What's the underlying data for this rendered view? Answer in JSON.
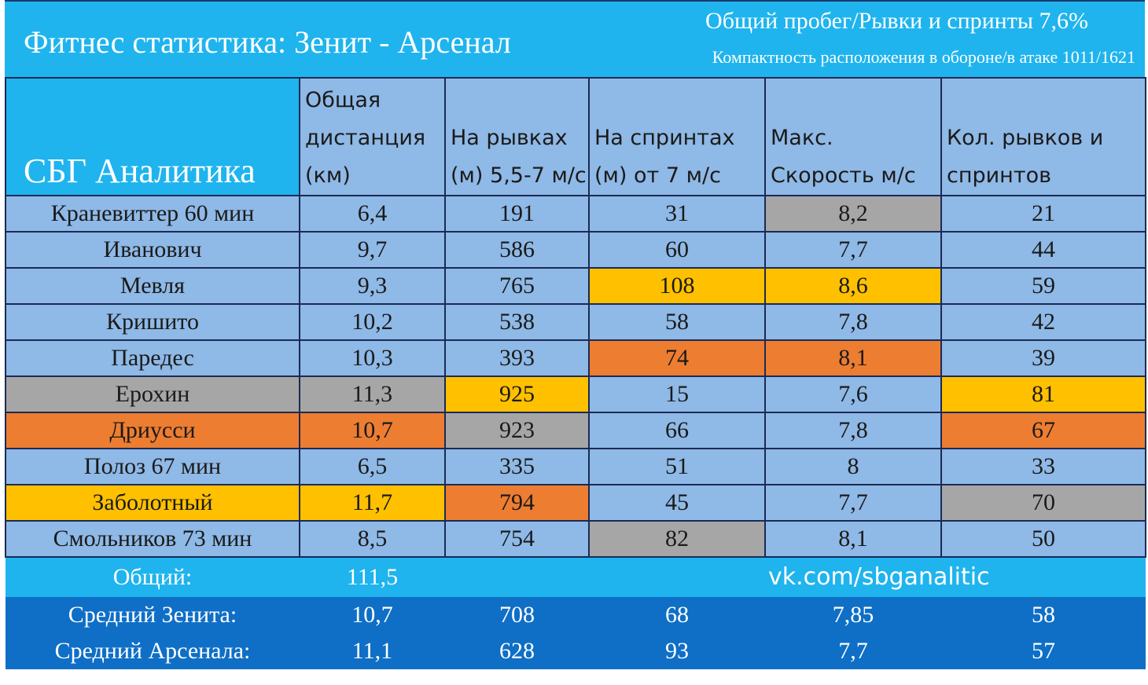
{
  "title": "Фитнес статистика: Зенит - Арсенал",
  "subtitle1": "Общий пробег/Рывки и спринты 7,6%",
  "subtitle2": "Компактность расположения в обороне/в атаке 1011/1621",
  "brand": "СБГ Аналитика",
  "headers": [
    "Общая дистанция (км)",
    "На рывках (м) 5,5-7 м/с",
    "На спринтах (м) от 7 м/с",
    "Макс. Скорость м/с",
    "Кол. рывков и спринтов"
  ],
  "rows": [
    {
      "name": "Краневиттер 60 мин",
      "values": [
        "6,4",
        "191",
        "31",
        "8,2",
        "21"
      ]
    },
    {
      "name": "Иванович",
      "values": [
        "9,7",
        "586",
        "60",
        "7,7",
        "44"
      ]
    },
    {
      "name": "Мевля",
      "values": [
        "9,3",
        "765",
        "108",
        "8,6",
        "59"
      ]
    },
    {
      "name": "Кришито",
      "values": [
        "10,2",
        "538",
        "58",
        "7,8",
        "42"
      ]
    },
    {
      "name": "Паредес",
      "values": [
        "10,3",
        "393",
        "74",
        "8,1",
        "39"
      ]
    },
    {
      "name": "Ерохин",
      "values": [
        "11,3",
        "925",
        "15",
        "7,6",
        "81"
      ]
    },
    {
      "name": "Дриусси",
      "values": [
        "10,7",
        "923",
        "66",
        "7,8",
        "67"
      ]
    },
    {
      "name": "Полоз 67 мин",
      "values": [
        "6,5",
        "335",
        "51",
        "8",
        "33"
      ]
    },
    {
      "name": "Заболотный",
      "values": [
        "11,7",
        "794",
        "45",
        "7,7",
        "70"
      ]
    },
    {
      "name": "Смольников 73 мин",
      "values": [
        "8,5",
        "754",
        "82",
        "8,1",
        "50"
      ]
    }
  ],
  "total": {
    "label": "Общий:",
    "distance": "111,5",
    "link": "vk.com/sbganalitic"
  },
  "averages": [
    {
      "label": "Средний Зенита:",
      "values": [
        "10,7",
        "708",
        "68",
        "7,85",
        "58"
      ]
    },
    {
      "label": "Средний Арсенала:",
      "values": [
        "11,1",
        "628",
        "93",
        "7,7",
        "57"
      ]
    }
  ],
  "colors": {
    "title_band": "#1fb4ee",
    "cell": "#8fb9e6",
    "highlight_first": "#ffc000",
    "highlight_second": "#ed7d31",
    "highlight_third": "#a6a6a6",
    "averages_band": "#0f6fc6"
  }
}
